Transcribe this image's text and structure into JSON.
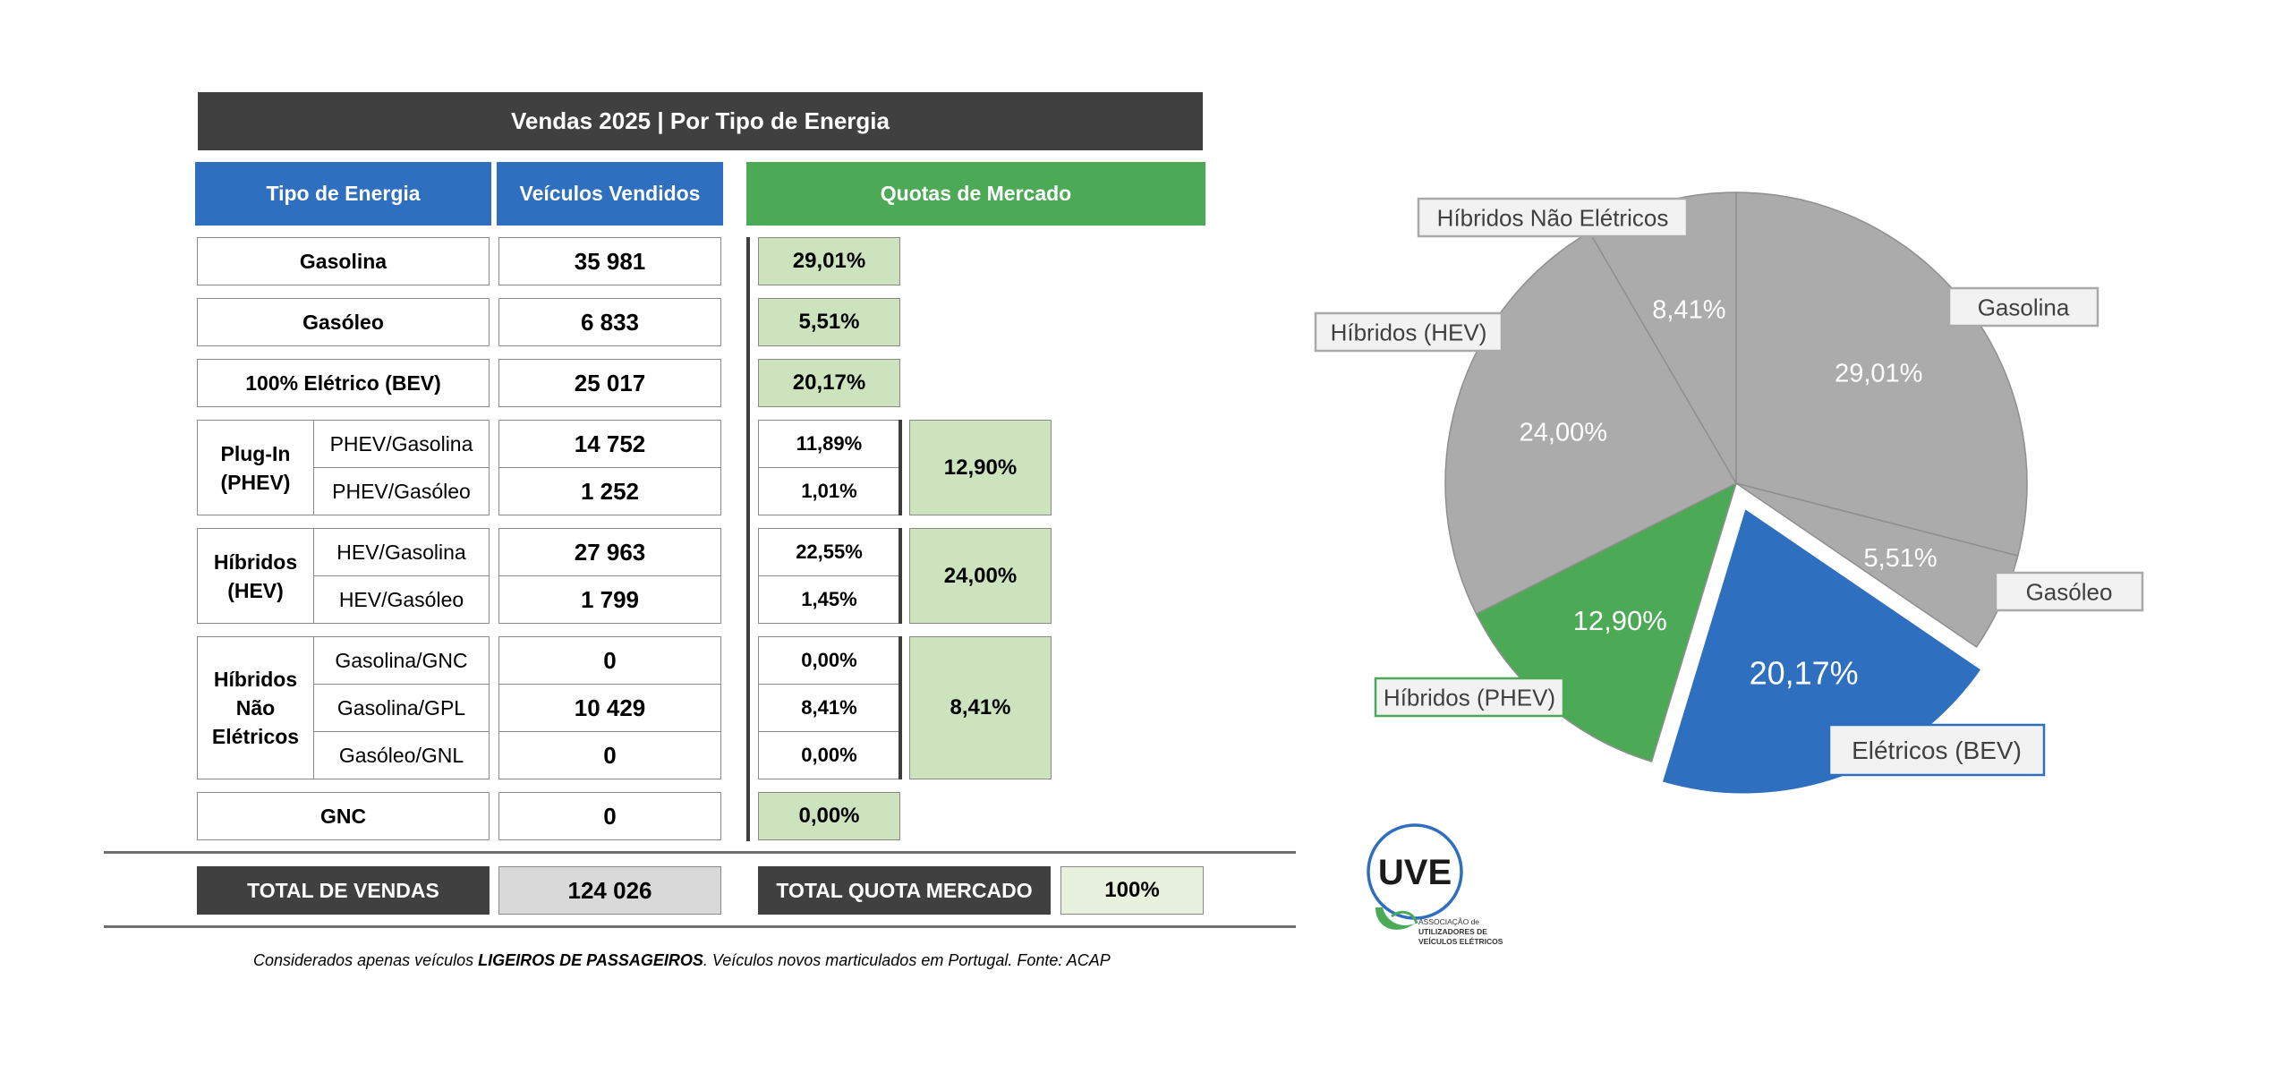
{
  "table": {
    "title": "Vendas 2025 | Por Tipo de Energia",
    "col_headers": {
      "tipo": "Tipo de Energia",
      "vendidos": "Veículos Vendidos",
      "quotas": "Quotas de Mercado"
    },
    "rows": {
      "gasolina": {
        "label": "Gasolina",
        "value": "35 981",
        "share": "29,01%"
      },
      "gasoleo": {
        "label": "Gasóleo",
        "value": "6 833",
        "share": "5,51%"
      },
      "bev": {
        "label": "100% Elétrico (BEV)",
        "value": "25 017",
        "share": "20,17%"
      },
      "phev": {
        "label_line1": "Plug-In",
        "label_line2": "(PHEV)",
        "group_share": "12,90%",
        "sub": [
          {
            "label": "PHEV/Gasolina",
            "value": "14 752",
            "share": "11,89%"
          },
          {
            "label": "PHEV/Gasóleo",
            "value": "1 252",
            "share": "1,01%"
          }
        ]
      },
      "hev": {
        "label_line1": "Híbridos",
        "label_line2": "(HEV)",
        "group_share": "24,00%",
        "sub": [
          {
            "label": "HEV/Gasolina",
            "value": "27 963",
            "share": "22,55%"
          },
          {
            "label": "HEV/Gasóleo",
            "value": "1 799",
            "share": "1,45%"
          }
        ]
      },
      "hne": {
        "label_line1": "Híbridos",
        "label_line2": "Não",
        "label_line3": "Elétricos",
        "group_share": "8,41%",
        "sub": [
          {
            "label": "Gasolina/GNC",
            "value": "0",
            "share": "0,00%"
          },
          {
            "label": "Gasolina/GPL",
            "value": "10 429",
            "share": "8,41%"
          },
          {
            "label": "Gasóleo/GNL",
            "value": "0",
            "share": "0,00%"
          }
        ]
      },
      "gnc": {
        "label": "GNC",
        "value": "0",
        "share": "0,00%"
      }
    },
    "totals": {
      "sales_label": "TOTAL DE VENDAS",
      "sales_value": "124 026",
      "share_label": "TOTAL QUOTA MERCADO",
      "share_value": "100%"
    },
    "footnote": {
      "prefix": "Considerados apenas veículos ",
      "bold": "LIGEIROS DE PASSAGEIROS",
      "suffix": ". Veículos novos marticulados em Portugal. Fonte: ACAP"
    }
  },
  "colors": {
    "header_dark": "#404040",
    "header_blue": "#2f6fbf",
    "header_green": "#4caa57",
    "share_fill": "#cce3bd",
    "pie_grey": "#ababab",
    "pie_green": "#4caa57",
    "pie_blue": "#2f6fbf"
  },
  "chart_data": {
    "type": "pie",
    "slices": [
      {
        "label": "Gasolina",
        "value": 29.01,
        "display": "29,01%",
        "color": "#ababab"
      },
      {
        "label": "Gasóleo",
        "value": 5.51,
        "display": "5,51%",
        "color": "#ababab"
      },
      {
        "label": "Elétricos (BEV)",
        "value": 20.17,
        "display": "20,17%",
        "color": "#2f6fbf",
        "exploded": true
      },
      {
        "label": "Híbridos (PHEV)",
        "value": 12.9,
        "display": "12,90%",
        "color": "#4caa57"
      },
      {
        "label": "Híbridos (HEV)",
        "value": 24.0,
        "display": "24,00%",
        "color": "#ababab"
      },
      {
        "label": "Híbridos Não Elétricos",
        "value": 8.41,
        "display": "8,41%",
        "color": "#ababab"
      }
    ]
  },
  "logo": {
    "mark": "UVE",
    "line1": "ASSOCIAÇÃO de",
    "line2": "UTILIZADORES DE",
    "line3": "VEÍCULOS ELÉTRICOS"
  }
}
